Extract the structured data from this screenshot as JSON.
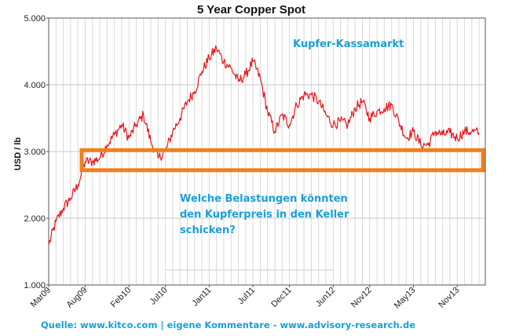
{
  "chart_data": {
    "type": "line",
    "title": "5 Year Copper Spot",
    "ylabel": "USD / lb",
    "xlabel": "",
    "ylim": [
      1.0,
      5.0
    ],
    "yticks": [
      "1.000",
      "2.000",
      "3.000",
      "4.000",
      "5.000"
    ],
    "xticks": [
      "Mar09",
      "Aug09",
      "Feb10",
      "Jul10",
      "Jan11",
      "Jul11",
      "Dec11",
      "Jun12",
      "Nov12",
      "May13",
      "Nov13"
    ],
    "grid": true,
    "series": [
      {
        "name": "",
        "color": "#e8161b",
        "points": [
          [
            "Mar09",
            1.6
          ],
          [
            "Apr09",
            1.95
          ],
          [
            "May09",
            2.15
          ],
          [
            "Jun09",
            2.3
          ],
          [
            "Jul09",
            2.5
          ],
          [
            "Aug09",
            2.85
          ],
          [
            "Sep09",
            2.85
          ],
          [
            "Oct09",
            2.9
          ],
          [
            "Nov09",
            3.1
          ],
          [
            "Dec09",
            3.25
          ],
          [
            "Jan10",
            3.4
          ],
          [
            "Feb10",
            3.2
          ],
          [
            "Mar10",
            3.4
          ],
          [
            "Apr10",
            3.55
          ],
          [
            "May10",
            3.15
          ],
          [
            "Jun10",
            2.9
          ],
          [
            "Jul10",
            3.0
          ],
          [
            "Aug10",
            3.3
          ],
          [
            "Sep10",
            3.5
          ],
          [
            "Oct10",
            3.75
          ],
          [
            "Nov10",
            3.9
          ],
          [
            "Dec10",
            4.2
          ],
          [
            "Jan11",
            4.4
          ],
          [
            "Feb11",
            4.55
          ],
          [
            "Mar11",
            4.35
          ],
          [
            "Apr11",
            4.25
          ],
          [
            "May11",
            4.05
          ],
          [
            "Jun11",
            4.15
          ],
          [
            "Jul11",
            4.35
          ],
          [
            "Aug11",
            4.1
          ],
          [
            "Sep11",
            3.6
          ],
          [
            "Oct11",
            3.3
          ],
          [
            "Nov11",
            3.55
          ],
          [
            "Dec11",
            3.4
          ],
          [
            "Jan12",
            3.7
          ],
          [
            "Feb12",
            3.85
          ],
          [
            "Mar12",
            3.85
          ],
          [
            "Apr12",
            3.75
          ],
          [
            "May12",
            3.55
          ],
          [
            "Jun12",
            3.4
          ],
          [
            "Jul12",
            3.45
          ],
          [
            "Aug12",
            3.4
          ],
          [
            "Sep12",
            3.65
          ],
          [
            "Oct12",
            3.75
          ],
          [
            "Nov12",
            3.5
          ],
          [
            "Dec12",
            3.6
          ],
          [
            "Jan13",
            3.65
          ],
          [
            "Feb13",
            3.7
          ],
          [
            "Mar13",
            3.45
          ],
          [
            "Apr13",
            3.2
          ],
          [
            "May13",
            3.3
          ],
          [
            "Jun13",
            3.1
          ],
          [
            "Jul13",
            3.1
          ],
          [
            "Aug13",
            3.3
          ],
          [
            "Sep13",
            3.25
          ],
          [
            "Oct13",
            3.28
          ],
          [
            "Nov13",
            3.2
          ],
          [
            "Dec13",
            3.3
          ],
          [
            "Jan14",
            3.3
          ],
          [
            "Feb14",
            3.28
          ]
        ]
      }
    ],
    "annotations": [
      {
        "id": "kassamarkt",
        "text": "Kupfer-Kassamarkt",
        "color": "#1a9fd9"
      },
      {
        "id": "question",
        "lines": [
          "Welche Belastungen könnten",
          "den Kupferpreis in den Keller",
          "schicken?"
        ],
        "color": "#1a9fd9"
      }
    ],
    "highlight_band": {
      "y_from": 2.72,
      "y_to": 3.02,
      "color": "#f07f1e"
    }
  },
  "footer": {
    "source": "Quelle: www.kitco.com | eigene Kommentare - www.advisory-research.de",
    "color": "#1a9fd9"
  }
}
